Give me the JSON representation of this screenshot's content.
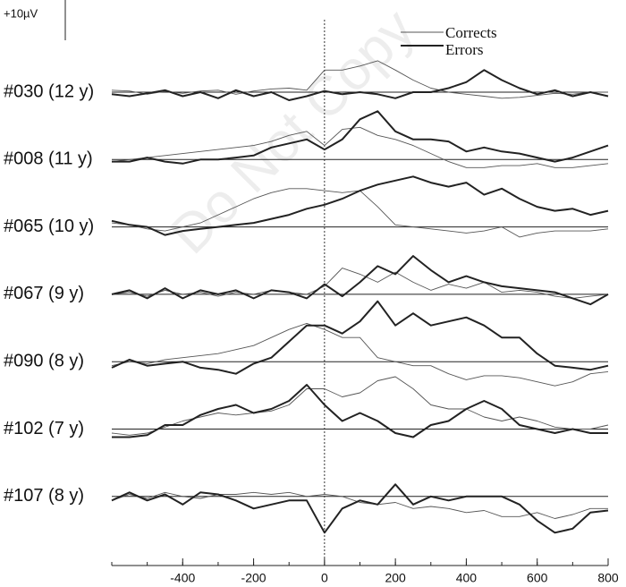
{
  "chart_data": {
    "type": "line",
    "x": [
      -600,
      -550,
      -500,
      -450,
      -400,
      -350,
      -300,
      -250,
      -200,
      -150,
      -100,
      -50,
      0,
      50,
      100,
      150,
      200,
      250,
      300,
      350,
      400,
      450,
      500,
      550,
      600,
      650,
      700,
      750,
      800
    ],
    "xlim": [
      -600,
      800
    ],
    "xticks": [
      -400,
      -200,
      0,
      200,
      400,
      600,
      800
    ],
    "xminor_step": 100,
    "ylim": [
      -6,
      10
    ],
    "yticks": [
      0
    ],
    "scale_bar": {
      "label": "+10µV",
      "value": 10
    },
    "watermark": "Do Not Copy",
    "series": [
      {
        "name": "Corrects",
        "color": "#555555",
        "width": 0.9
      },
      {
        "name": "Errors",
        "color": "#222222",
        "width": 2
      }
    ],
    "panels": [
      {
        "label": "#030 (12 y)",
        "values": [
          [
            0.5,
            0.3,
            -0.5,
            0.2,
            -0.3,
            0.3,
            0.5,
            -0.5,
            0.3,
            0.8,
            1,
            0.5,
            5.5,
            5.5,
            6.5,
            7.8,
            5.5,
            3,
            1,
            0,
            -0.5,
            -1,
            -1.5,
            -1.3,
            -0.8,
            -0.3,
            -0.5,
            0,
            0
          ],
          [
            -0.5,
            -1,
            -0.3,
            0.5,
            -1,
            0,
            -1.5,
            0.5,
            -1,
            0,
            -2,
            -1,
            0.3,
            -0.5,
            0,
            -0.5,
            -1.5,
            0,
            0,
            1,
            2.5,
            5.5,
            3,
            1,
            -0.5,
            0.5,
            -1,
            0,
            -1
          ]
        ]
      },
      {
        "label": "#008 (11 y)",
        "values": [
          [
            -0.5,
            0,
            0.5,
            1,
            1.5,
            2,
            2.5,
            3,
            3.5,
            4.5,
            6,
            7,
            3.5,
            7.5,
            8,
            6,
            5,
            3.5,
            1.5,
            -0.5,
            -2,
            -2,
            -1.5,
            -1.5,
            -1,
            -2,
            -2,
            -1.5,
            -1
          ],
          [
            -0.5,
            -0.5,
            0.5,
            -0.5,
            -1,
            0,
            0,
            0.5,
            1,
            3,
            4,
            5,
            2.5,
            5,
            10,
            12,
            7,
            5,
            5,
            4.5,
            2,
            3,
            2,
            1.5,
            0.5,
            -0.5,
            0.5,
            2,
            3.5
          ]
        ]
      },
      {
        "label": "#065 (10 y)",
        "values": [
          [
            1,
            0.5,
            -0.5,
            -1,
            0,
            1,
            3,
            5,
            7,
            8.5,
            9.5,
            9.5,
            9,
            8.5,
            9,
            5,
            0.5,
            0,
            -0.5,
            -1,
            -1.5,
            -1,
            0,
            -2.5,
            -1.5,
            -1,
            -1,
            -1,
            -0.5
          ],
          [
            1.5,
            0.5,
            0,
            -2,
            -1,
            -0.5,
            0,
            0.5,
            1,
            2,
            3,
            4.5,
            5.5,
            7,
            9,
            10.5,
            11.5,
            12.5,
            11,
            10,
            11,
            8,
            9.5,
            7,
            5,
            4,
            4.5,
            3,
            4
          ]
        ]
      },
      {
        "label": "#067 (9 y)",
        "values": [
          [
            0,
            0.5,
            -0.5,
            1,
            0,
            0.5,
            -0.5,
            0.5,
            0,
            1,
            0.5,
            0,
            2,
            6.5,
            5,
            3,
            5.5,
            3,
            1,
            2.5,
            1.5,
            3,
            0.5,
            1,
            0.5,
            -0.5,
            -1,
            -0.5,
            0
          ],
          [
            0,
            1,
            -1,
            1.5,
            -1,
            1,
            0,
            1,
            -1,
            1,
            0.5,
            -1,
            2.5,
            -0.5,
            3,
            7,
            5,
            9.5,
            6,
            3,
            4.5,
            3,
            2,
            1.5,
            1,
            0.5,
            -1,
            -2.5,
            0
          ]
        ]
      },
      {
        "label": "#090 (8 y)",
        "values": [
          [
            -1,
            0,
            -0.5,
            0.5,
            1,
            1.5,
            2,
            3,
            4,
            6,
            8,
            9.5,
            8,
            6,
            6,
            1,
            0,
            -1,
            -1,
            -3,
            -4.5,
            -3.5,
            -3.5,
            -4,
            -5,
            -6,
            -5,
            -3,
            -2.5
          ],
          [
            -1.5,
            0.5,
            -1,
            -0.5,
            0,
            -1.5,
            -2,
            -3,
            -0.5,
            1,
            5,
            9,
            9,
            7,
            10,
            15,
            9,
            12,
            9,
            10,
            11,
            9,
            6,
            6,
            2,
            -1,
            -1.5,
            -2,
            -1
          ]
        ]
      },
      {
        "label": "#102 (7 y)",
        "values": [
          [
            -1,
            -1.5,
            -1,
            0.5,
            2,
            3,
            4,
            3.5,
            4,
            4.5,
            6,
            10,
            10,
            8,
            9,
            12,
            13,
            10,
            6,
            5,
            5,
            3,
            2,
            3,
            2,
            0.5,
            0,
            0,
            1
          ],
          [
            -2,
            -2,
            -1.5,
            1,
            1,
            3.5,
            5,
            6,
            4,
            5,
            7,
            11,
            6,
            2,
            4,
            2,
            -1,
            -2,
            1,
            2,
            5,
            7,
            5,
            1,
            0,
            -1,
            0,
            -1,
            -1
          ]
        ]
      },
      {
        "label": "#107 (8 y)",
        "values": [
          [
            -1,
            0.5,
            -0.5,
            1,
            0,
            -0.5,
            0.5,
            0.5,
            1,
            0.5,
            1,
            0,
            0.5,
            0,
            -1.5,
            -2,
            -1.5,
            -3,
            -2.5,
            -3,
            -4,
            -3.5,
            -5,
            -5,
            -4,
            -5.5,
            -4.5,
            -3,
            -3
          ],
          [
            -1,
            1,
            -1,
            0.5,
            -2,
            1,
            0.5,
            -1,
            -3,
            -2,
            -1,
            -1,
            -9,
            -3,
            -1,
            -2,
            3,
            -2,
            0,
            -1,
            0,
            0,
            0,
            -2,
            -6,
            -9,
            -8,
            -4,
            -3.5
          ]
        ]
      }
    ]
  }
}
